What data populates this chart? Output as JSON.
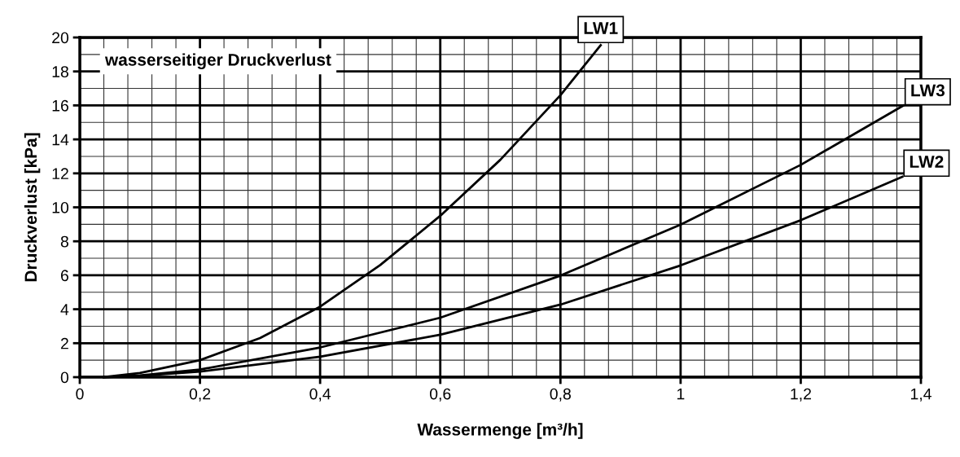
{
  "chart_data": {
    "type": "line",
    "xlabel": "Wassermenge [m³/h]",
    "ylabel": "Druckverlust [kPa]",
    "annotations": [
      "wasserseitiger Druckverlust"
    ],
    "xlim": [
      0,
      1.4
    ],
    "ylim": [
      0,
      20
    ],
    "xticks": [
      0,
      {
        "value": 0.2,
        "label": "0,2"
      },
      {
        "value": 0.4,
        "label": "0,4"
      },
      {
        "value": 0.6,
        "label": "0,6"
      },
      {
        "value": 0.8,
        "label": "0,8"
      },
      1,
      {
        "value": 1.2,
        "label": "1,2"
      },
      {
        "value": 1.4,
        "label": "1,4"
      }
    ],
    "yticks": [
      0,
      2,
      4,
      6,
      8,
      10,
      12,
      14,
      16,
      18,
      20
    ],
    "grid": true,
    "legend": false,
    "marker": "none",
    "line_style": "solid",
    "series": [
      {
        "name": "LW1",
        "color": "#000000",
        "x": [
          0.04,
          0.1,
          0.2,
          0.3,
          0.4,
          0.5,
          0.6,
          0.7,
          0.8,
          0.867
        ],
        "values": [
          0,
          0.25,
          1.0,
          2.3,
          4.15,
          6.6,
          9.5,
          12.8,
          16.6,
          19.55
        ]
      },
      {
        "name": "LW2",
        "color": "#000000",
        "x": [
          0.04,
          0.1,
          0.2,
          0.4,
          0.6,
          0.8,
          1.0,
          1.2,
          1.369
        ],
        "values": [
          0,
          0.08,
          0.33,
          1.2,
          2.5,
          4.27,
          6.58,
          9.24,
          11.8
        ]
      },
      {
        "name": "LW3",
        "color": "#000000",
        "x": [
          0.04,
          0.1,
          0.2,
          0.4,
          0.6,
          0.8,
          1.0,
          1.2,
          1.371
        ],
        "values": [
          0,
          0.1,
          0.45,
          1.75,
          3.5,
          5.98,
          8.98,
          12.5,
          16.0
        ]
      }
    ]
  }
}
